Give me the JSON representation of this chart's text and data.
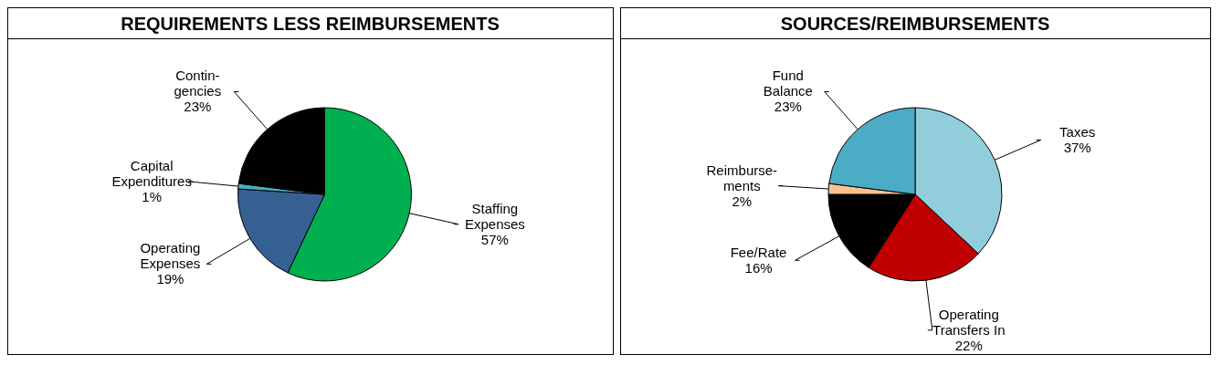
{
  "chart_data": [
    {
      "type": "pie",
      "title": "REQUIREMENTS LESS REIMBURSEMENTS",
      "categories": [
        "Staffing\nExpenses",
        "Operating\nExpenses",
        "Capital\nExpenditures",
        "Contin-\ngencies"
      ],
      "values": [
        57,
        19,
        1,
        23
      ],
      "colors": [
        "#00b050",
        "#366092",
        "#4bacc6",
        "#000000"
      ],
      "value_labels": [
        "57%",
        "19%",
        "1%",
        "23%"
      ]
    },
    {
      "type": "pie",
      "title": "SOURCES/REIMBURSEMENTS",
      "categories": [
        "Taxes",
        "Operating\nTransfers In",
        "Fee/Rate",
        "Reimburse-\nments",
        "Fund\nBalance"
      ],
      "values": [
        37,
        22,
        16,
        2,
        23
      ],
      "colors": [
        "#92cddc",
        "#c00000",
        "#000000",
        "#fac090",
        "#4bacc6"
      ],
      "value_labels": [
        "37%",
        "22%",
        "16%",
        "2%",
        "23%"
      ]
    }
  ]
}
